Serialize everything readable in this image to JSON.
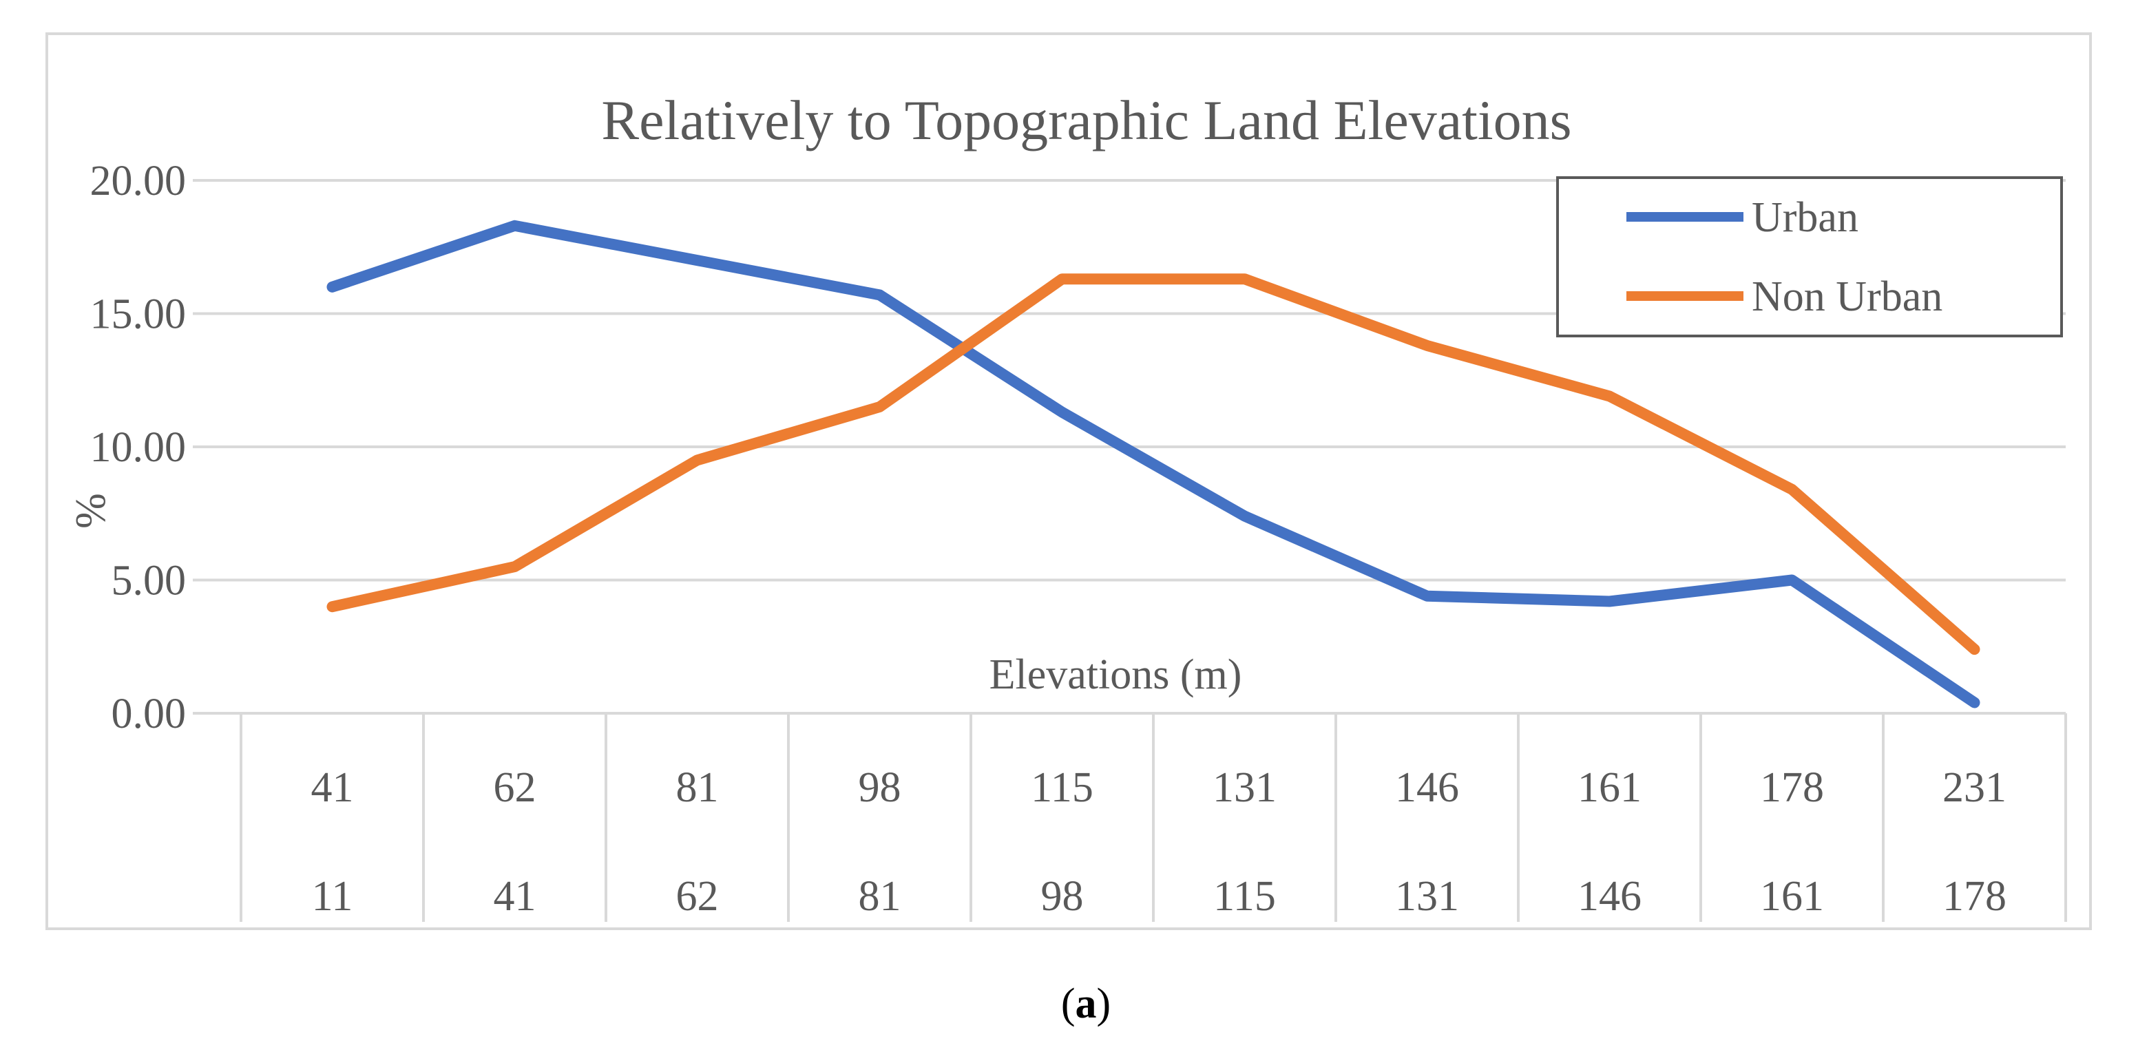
{
  "chart_data": {
    "type": "line",
    "title": "Relatively to Topographic Land Elevations",
    "xlabel": "Elevations (m)",
    "ylabel": "%",
    "ylim": [
      0,
      20
    ],
    "yticks": [
      "0.00",
      "5.00",
      "10.00",
      "15.00",
      "20.00"
    ],
    "grid": true,
    "legend_position": "top-right",
    "categories_upper": [
      "41",
      "62",
      "81",
      "98",
      "115",
      "131",
      "146",
      "161",
      "178",
      "231"
    ],
    "categories_lower": [
      "11",
      "41",
      "62",
      "81",
      "98",
      "115",
      "131",
      "146",
      "161",
      "178"
    ],
    "series": [
      {
        "name": "Urban",
        "color": "#4472C4",
        "values": [
          16.0,
          18.3,
          17.0,
          15.7,
          11.3,
          7.4,
          4.4,
          4.2,
          5.0,
          0.4
        ]
      },
      {
        "name": "Non Urban",
        "color": "#ED7D31",
        "values": [
          4.0,
          5.5,
          9.5,
          11.5,
          16.3,
          16.3,
          13.8,
          11.9,
          8.4,
          2.4
        ]
      }
    ]
  },
  "caption": {
    "open": "(",
    "letter": "a",
    "close": ")"
  }
}
